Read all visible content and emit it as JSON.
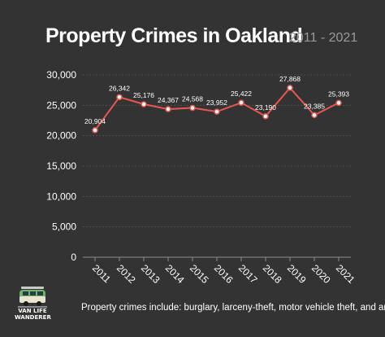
{
  "chart_data": {
    "type": "line",
    "title": "Property Crimes in Oakland",
    "subtitle": "2011 - 2021",
    "categories": [
      "2011",
      "2012",
      "2013",
      "2014",
      "2015",
      "2016",
      "2017",
      "2018",
      "2019",
      "2020",
      "2021"
    ],
    "values": [
      20904,
      26342,
      25176,
      24367,
      24568,
      23952,
      25422,
      23190,
      27868,
      23385,
      25393
    ],
    "value_labels": [
      "20,904",
      "26,342",
      "25,176",
      "24,367",
      "24,568",
      "23,952",
      "25,422",
      "23,190",
      "27,868",
      "23,385",
      "25,393"
    ],
    "y_ticks": [
      0,
      5000,
      10000,
      15000,
      20000,
      25000,
      30000
    ],
    "y_tick_labels": [
      "0",
      "5,000",
      "10,000",
      "15,000",
      "20,000",
      "25,000",
      "30,000"
    ],
    "ylim": [
      0,
      30000
    ],
    "grid": true,
    "line_color": "#e8574f",
    "marker_color": "#ffffff"
  },
  "logo": {
    "line1": "VAN LIFE",
    "line2": "WANDERER"
  },
  "footnote": "Property crimes include: burglary, larceny-theft, motor vehicle theft, and arson"
}
